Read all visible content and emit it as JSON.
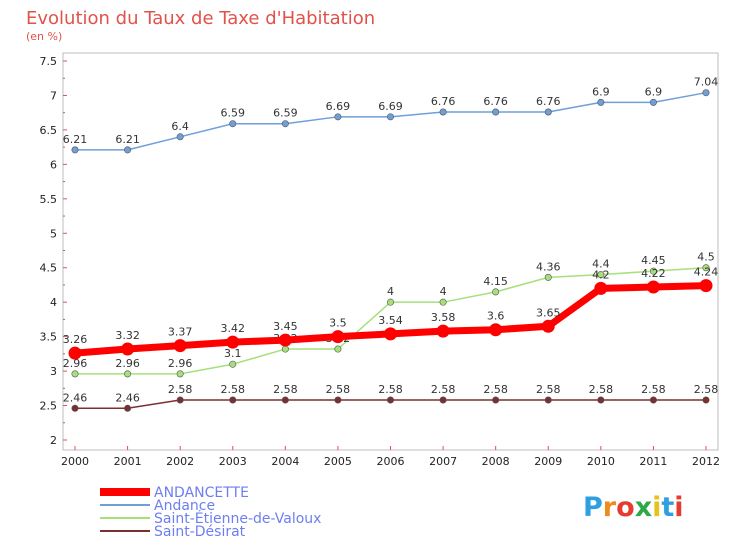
{
  "chart_data": {
    "type": "line",
    "title": "Evolution du Taux de Taxe d'Habitation",
    "subtitle": "(en %)",
    "x": [
      "2000",
      "2001",
      "2002",
      "2003",
      "2004",
      "2005",
      "2006",
      "2007",
      "2008",
      "2009",
      "2010",
      "2011",
      "2012"
    ],
    "ylim": [
      2,
      7.5
    ],
    "yticks": [
      "2",
      "2.5",
      "3",
      "3.5",
      "4",
      "4.5",
      "5",
      "5.5",
      "6",
      "6.5",
      "7",
      "7.5"
    ],
    "grid": false,
    "legend_position": "bottom-left",
    "series": [
      {
        "name": "ANDANCETTE",
        "color": "#ff0000",
        "values": [
          3.26,
          3.32,
          3.37,
          3.42,
          3.45,
          3.5,
          3.54,
          3.58,
          3.6,
          3.65,
          4.2,
          4.22,
          4.24
        ],
        "labels": [
          "3.26",
          "3.32",
          "3.37",
          "3.42",
          "3.45",
          "3.5",
          "3.54",
          "3.58",
          "3.6",
          "3.65",
          "4.2",
          "4.22",
          "4.24"
        ]
      },
      {
        "name": "Andance",
        "color": "#6f9fd8",
        "values": [
          6.21,
          6.21,
          6.4,
          6.59,
          6.59,
          6.69,
          6.69,
          6.76,
          6.76,
          6.76,
          6.9,
          6.9,
          7.04
        ],
        "labels": [
          "6.21",
          "6.21",
          "6.4",
          "6.59",
          "6.59",
          "6.69",
          "6.69",
          "6.76",
          "6.76",
          "6.76",
          "6.9",
          "6.9",
          "7.04"
        ]
      },
      {
        "name": "Saint-Étienne-de-Valoux",
        "color": "#a6e07a",
        "values": [
          2.96,
          2.96,
          2.96,
          3.1,
          3.32,
          3.32,
          4,
          4,
          4.15,
          4.36,
          4.4,
          4.45,
          4.5
        ],
        "labels": [
          "2.96",
          "2.96",
          "2.96",
          "3.1",
          "3.32",
          "3.32",
          "4",
          "4",
          "4.15",
          "4.36",
          "4.4",
          "4.45",
          "4.5"
        ]
      },
      {
        "name": "Saint-Désirat",
        "color": "#7a3030",
        "values": [
          2.46,
          2.46,
          2.58,
          2.58,
          2.58,
          2.58,
          2.58,
          2.58,
          2.58,
          2.58,
          2.58,
          2.58,
          2.58
        ],
        "labels": [
          "2.46",
          "2.46",
          "2.58",
          "2.58",
          "2.58",
          "2.58",
          "2.58",
          "2.58",
          "2.58",
          "2.58",
          "2.58",
          "2.58",
          "2.58"
        ]
      }
    ]
  },
  "brand": {
    "letters": [
      "P",
      "r",
      "o",
      "x",
      "i",
      "t",
      "i"
    ],
    "colors": [
      "#2e9fe0",
      "#f08a1c",
      "#e63b2e",
      "#2ea84a",
      "#e6c21c",
      "#2e9fe0",
      "#e63b2e"
    ]
  }
}
